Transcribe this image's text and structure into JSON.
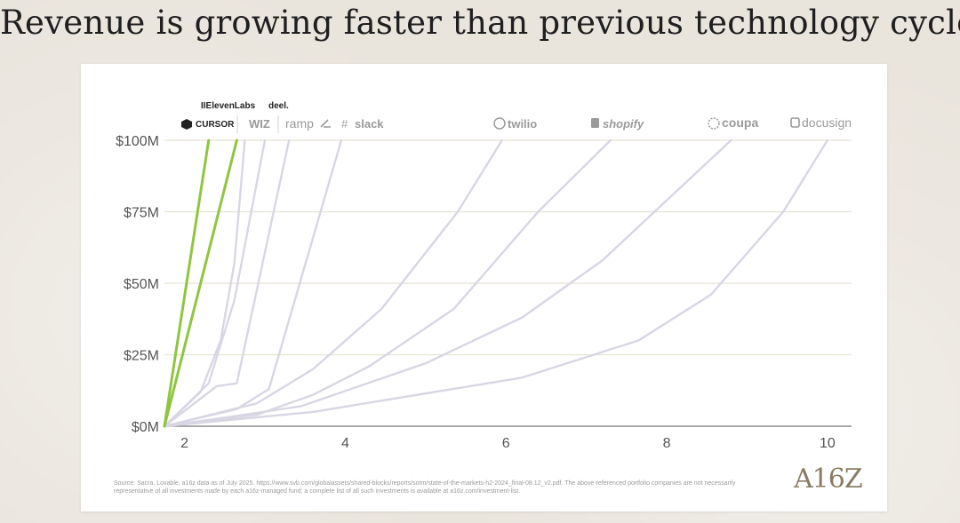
{
  "title": "Revenue is growing faster than previous technology cycles",
  "chart_data": {
    "type": "line",
    "title": "Revenue is growing faster than previous technology cycles",
    "xlabel": "",
    "ylabel": "",
    "xlim": [
      1.75,
      10.3
    ],
    "ylim": [
      0,
      100
    ],
    "x_ticks": [
      2,
      4,
      6,
      8,
      10
    ],
    "x_tick_labels": [
      "2",
      "4",
      "6",
      "8",
      "10"
    ],
    "y_ticks": [
      0,
      25,
      50,
      75,
      100
    ],
    "y_tick_labels": [
      "$0M",
      "$25M",
      "$50M",
      "$75M",
      "$100M"
    ],
    "grid": "horizontal",
    "series": [
      {
        "name": "Cursor",
        "label": "CURSOR",
        "highlight": true,
        "color": "#8ec63f",
        "x": [
          1.75,
          2.3
        ],
        "y": [
          0,
          100
        ]
      },
      {
        "name": "ElevenLabs",
        "label": "IIElevenLabs",
        "highlight": true,
        "color": "#8ec63f",
        "x": [
          1.75,
          2.65
        ],
        "y": [
          0,
          100
        ]
      },
      {
        "name": "Wiz",
        "label": "WIZ",
        "highlight": false,
        "color": "#d9d6e4",
        "x": [
          1.75,
          2.2,
          2.45,
          2.62,
          2.75
        ],
        "y": [
          0,
          12,
          30,
          57,
          100
        ]
      },
      {
        "name": "Deel",
        "label": "deel.",
        "highlight": false,
        "color": "#d9d6e4",
        "x": [
          1.75,
          2.3,
          2.62,
          3.0
        ],
        "y": [
          0,
          15,
          44,
          100
        ]
      },
      {
        "name": "Ramp",
        "label": "ramp",
        "highlight": false,
        "color": "#d9d6e4",
        "x": [
          1.75,
          2.4,
          2.65,
          3.3
        ],
        "y": [
          0,
          14,
          15,
          100
        ]
      },
      {
        "name": "Slack",
        "label": "slack",
        "highlight": false,
        "color": "#d9d6e4",
        "x": [
          1.75,
          2.65,
          3.05,
          3.6,
          3.95
        ],
        "y": [
          0,
          6,
          13,
          66,
          100
        ]
      },
      {
        "name": "Twilio",
        "label": "twilio",
        "highlight": false,
        "color": "#d9d6e4",
        "x": [
          1.75,
          2.9,
          3.6,
          4.45,
          5.4,
          5.95
        ],
        "y": [
          0,
          8,
          20,
          41,
          75,
          100
        ]
      },
      {
        "name": "Shopify",
        "label": "shopify",
        "highlight": false,
        "color": "#d9d6e4",
        "x": [
          1.75,
          2.9,
          3.6,
          4.3,
          5.35,
          6.4,
          7.3
        ],
        "y": [
          0,
          4,
          11,
          21,
          41,
          75,
          100
        ]
      },
      {
        "name": "Coupa",
        "label": "coupa",
        "highlight": false,
        "color": "#d9d6e4",
        "x": [
          1.75,
          2.5,
          3.45,
          5.0,
          6.2,
          7.2,
          8.8
        ],
        "y": [
          0,
          3,
          7,
          22,
          38,
          58,
          100
        ]
      },
      {
        "name": "Docusign",
        "label": "docusign",
        "highlight": false,
        "color": "#d9d6e4",
        "x": [
          1.75,
          3.6,
          6.2,
          7.65,
          8.55,
          9.45,
          10.0
        ],
        "y": [
          0,
          5,
          17,
          30,
          46,
          75,
          100
        ]
      }
    ]
  },
  "logos": {
    "cursor": "CURSOR",
    "elevenlabs": "IIElevenLabs",
    "wiz": "WIZ",
    "deel": "deel.",
    "ramp": "ramp",
    "slack": "slack",
    "twilio": "twilio",
    "shopify": "shopify",
    "coupa": "coupa",
    "docusign": "docusign"
  },
  "source_text": "Source: Sacra, Lovable, a16z data as of July 2025. https://www.svb.com/globalassets/shared-blocks/reports/sotm/state-of-the-markets-h2-2024_final-08.12_v2.pdf. The above-referenced portfolio companies are not necessarily representative of all investments made by each a16z-managed fund; a complete list of all such investments is available at a16z.com/investment-list.",
  "brand": "A16Z"
}
